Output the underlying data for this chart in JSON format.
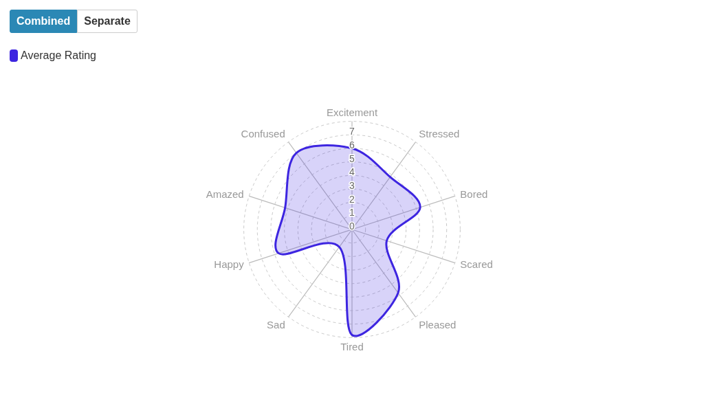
{
  "chart_data": {
    "type": "radar",
    "categories": [
      "Excitement",
      "Stressed",
      "Bored",
      "Scared",
      "Pleased",
      "Tired",
      "Sad",
      "Happy",
      "Amazed",
      "Confused"
    ],
    "series": [
      {
        "name": "Average Rating",
        "color": "#3d25e0",
        "values": [
          6.0,
          4.8,
          5.3,
          2.7,
          5.8,
          7.8,
          1.6,
          5.7,
          5.2,
          7.0
        ]
      }
    ],
    "ylim": [
      0,
      8
    ],
    "yticks": [
      0,
      1,
      2,
      3,
      4,
      5,
      6,
      7
    ],
    "grid": true,
    "legend": "top left",
    "annotations": [
      "Combined",
      "Separate"
    ]
  }
}
